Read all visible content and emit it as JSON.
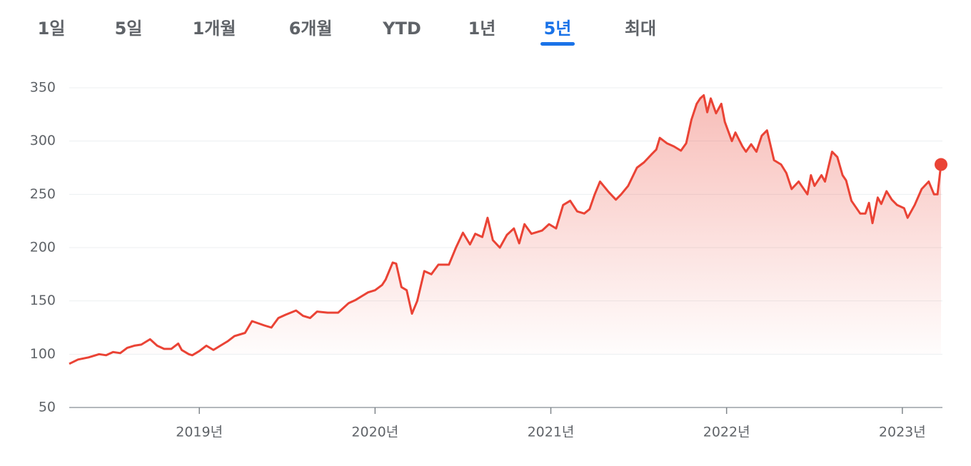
{
  "tabs": [
    "1일",
    "5일",
    "1개월",
    "6개월",
    "YTD",
    "1년",
    "5년",
    "최대"
  ],
  "selected_tab": 6,
  "chart_data": {
    "type": "line",
    "x": [
      2018.26,
      2018.31,
      2018.37,
      2018.43,
      2018.47,
      2018.51,
      2018.55,
      2018.59,
      2018.63,
      2018.67,
      2018.72,
      2018.76,
      2018.8,
      2018.84,
      2018.88,
      2018.9,
      2018.94,
      2018.96,
      2019.0,
      2019.04,
      2019.08,
      2019.12,
      2019.16,
      2019.2,
      2019.26,
      2019.3,
      2019.37,
      2019.41,
      2019.45,
      2019.49,
      2019.55,
      2019.59,
      2019.63,
      2019.67,
      2019.73,
      2019.79,
      2019.85,
      2019.89,
      2019.96,
      2020.0,
      2020.04,
      2020.06,
      2020.1,
      2020.12,
      2020.15,
      2020.18,
      2020.21,
      2020.24,
      2020.28,
      2020.32,
      2020.36,
      2020.42,
      2020.46,
      2020.5,
      2020.54,
      2020.57,
      2020.61,
      2020.64,
      2020.67,
      2020.71,
      2020.75,
      2020.79,
      2020.82,
      2020.85,
      2020.89,
      2020.95,
      2020.99,
      2021.03,
      2021.07,
      2021.11,
      2021.15,
      2021.19,
      2021.22,
      2021.25,
      2021.28,
      2021.33,
      2021.37,
      2021.4,
      2021.44,
      2021.49,
      2021.53,
      2021.57,
      2021.6,
      2021.62,
      2021.66,
      2021.7,
      2021.74,
      2021.77,
      2021.8,
      2021.83,
      2021.85,
      2021.87,
      2021.89,
      2021.91,
      2021.94,
      2021.97,
      2021.99,
      2022.03,
      2022.05,
      2022.09,
      2022.11,
      2022.14,
      2022.17,
      2022.2,
      2022.23,
      2022.27,
      2022.31,
      2022.34,
      2022.37,
      2022.41,
      2022.46,
      2022.48,
      2022.5,
      2022.54,
      2022.56,
      2022.6,
      2022.63,
      2022.66,
      2022.68,
      2022.71,
      2022.76,
      2022.79,
      2022.81,
      2022.83,
      2022.86,
      2022.88,
      2022.91,
      2022.94,
      2022.97,
      2023.01,
      2023.03,
      2023.07,
      2023.11,
      2023.15,
      2023.18,
      2023.2,
      2023.22
    ],
    "series": [
      {
        "color": "#ea4335",
        "values": [
          91,
          95,
          97,
          100,
          99,
          102,
          101,
          106,
          108,
          109,
          114,
          108,
          105,
          105,
          110,
          104,
          100,
          99,
          103,
          108,
          104,
          108,
          112,
          117,
          120,
          131,
          127,
          125,
          134,
          137,
          141,
          136,
          134,
          140,
          139,
          139,
          148,
          151,
          158,
          160,
          165,
          170,
          186,
          185,
          163,
          160,
          138,
          150,
          178,
          175,
          184,
          184,
          200,
          214,
          203,
          213,
          210,
          228,
          207,
          200,
          212,
          218,
          204,
          222,
          213,
          216,
          222,
          218,
          240,
          244,
          234,
          232,
          236,
          250,
          262,
          252,
          245,
          250,
          258,
          275,
          280,
          287,
          292,
          303,
          298,
          295,
          291,
          298,
          320,
          335,
          340,
          343,
          327,
          340,
          326,
          335,
          318,
          300,
          308,
          295,
          290,
          297,
          290,
          305,
          310,
          282,
          278,
          270,
          255,
          262,
          250,
          268,
          258,
          268,
          262,
          290,
          285,
          268,
          263,
          244,
          232,
          232,
          242,
          223,
          247,
          241,
          253,
          245,
          240,
          237,
          228,
          240,
          255,
          262,
          250,
          250,
          278
        ]
      }
    ],
    "xlim": [
      2018.26,
      2023.22
    ],
    "ylim": [
      50,
      350
    ],
    "yticks": [
      50,
      100,
      150,
      200,
      250,
      300,
      350
    ],
    "xticks": [
      {
        "value": 2019,
        "label": "2019년"
      },
      {
        "value": 2020,
        "label": "2020년"
      },
      {
        "value": 2021,
        "label": "2021년"
      },
      {
        "value": 2022,
        "label": "2022년"
      },
      {
        "value": 2023,
        "label": "2023년"
      }
    ],
    "grid": true
  }
}
